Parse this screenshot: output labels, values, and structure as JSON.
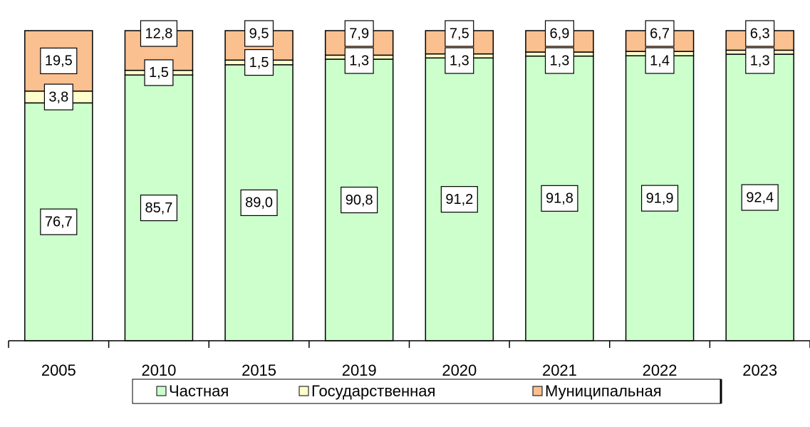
{
  "chart_data": {
    "type": "stacked_bar",
    "categories": [
      "2005",
      "2010",
      "2015",
      "2019",
      "2020",
      "2021",
      "2022",
      "2023"
    ],
    "series": [
      {
        "name": "Частная",
        "color": "#ccffcc",
        "values": [
          76.7,
          85.7,
          89.0,
          90.8,
          91.2,
          91.8,
          91.9,
          92.4
        ],
        "value_labels": [
          "76,7",
          "85,7",
          "89,0",
          "90,8",
          "91,2",
          "91,8",
          "91,9",
          "92,4"
        ]
      },
      {
        "name": "Государственная",
        "color": "#ffffcc",
        "values": [
          3.8,
          1.5,
          1.5,
          1.3,
          1.3,
          1.3,
          1.4,
          1.3
        ],
        "value_labels": [
          "3,8",
          "1,5",
          "1,5",
          "1,3",
          "1,3",
          "1,3",
          "1,4",
          "1,3"
        ]
      },
      {
        "name": "Муниципальная",
        "color": "#fac090",
        "values": [
          19.5,
          12.8,
          9.5,
          7.9,
          7.5,
          6.9,
          6.7,
          6.3
        ],
        "value_labels": [
          "19,5",
          "12,8",
          "9,5",
          "7,9",
          "7,5",
          "6,9",
          "6,7",
          "6,3"
        ]
      }
    ],
    "ylim": [
      0,
      100
    ]
  }
}
